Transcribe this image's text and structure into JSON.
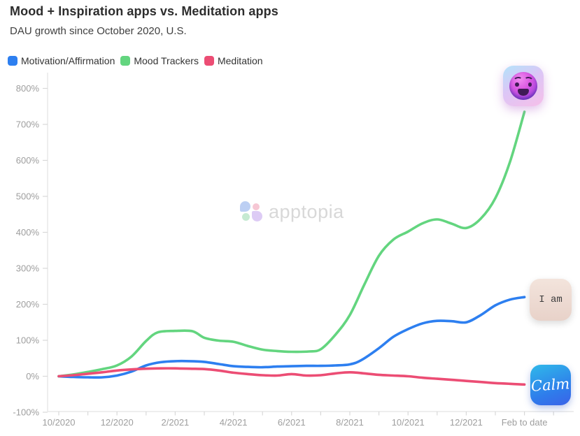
{
  "header": {
    "title": "Mood + Inspiration apps vs. Meditation apps",
    "subtitle": "DAU growth since October 2020, U.S."
  },
  "legend": [
    {
      "label": "Motivation/Affirmation",
      "color": "#2D7FF0"
    },
    {
      "label": "Mood Trackers",
      "color": "#63D57F"
    },
    {
      "label": "Meditation",
      "color": "#EC4D74"
    }
  ],
  "watermark": {
    "text": "apptopia",
    "petal_colors": [
      "#b9cdf3",
      "#f6c5d2",
      "#c3e9d0",
      "#dcc9f5"
    ]
  },
  "icons": {
    "mood_tracker": {
      "description": "smiley-face gradient app icon"
    },
    "i_am": {
      "text": "I am"
    },
    "calm": {
      "text": "Calm"
    }
  },
  "chart_data": {
    "type": "line",
    "title": "Mood + Inspiration apps vs. Meditation apps",
    "subtitle": "DAU growth since October 2020, U.S.",
    "x_unit": "months since 10/2020",
    "x_tick_labels": [
      "10/2020",
      "12/2020",
      "2/2021",
      "4/2021",
      "6/2021",
      "8/2021",
      "10/2021",
      "12/2021",
      "Feb to date"
    ],
    "y_ticks": [
      800,
      700,
      600,
      500,
      400,
      300,
      200,
      100,
      0,
      -100
    ],
    "ylim": [
      -100,
      800
    ],
    "y_suffix": "%",
    "grid": false,
    "legend_position": "top-left",
    "series": [
      {
        "name": "Motivation/Affirmation",
        "slug": "motivation-affirmation",
        "color": "#2D7FF0",
        "points": [
          [
            0,
            0
          ],
          [
            0.5,
            -2
          ],
          [
            1,
            -3
          ],
          [
            1.5,
            -3
          ],
          [
            2,
            2
          ],
          [
            2.5,
            13
          ],
          [
            3,
            30
          ],
          [
            3.5,
            39
          ],
          [
            4,
            42
          ],
          [
            4.5,
            42
          ],
          [
            5,
            40
          ],
          [
            5.5,
            34
          ],
          [
            6,
            28
          ],
          [
            6.5,
            26
          ],
          [
            7,
            25
          ],
          [
            7.5,
            27
          ],
          [
            8,
            28
          ],
          [
            8.5,
            29
          ],
          [
            9,
            29
          ],
          [
            9.5,
            30
          ],
          [
            10,
            33
          ],
          [
            10.4,
            45
          ],
          [
            11,
            78
          ],
          [
            11.5,
            110
          ],
          [
            12,
            131
          ],
          [
            12.5,
            147
          ],
          [
            13,
            154
          ],
          [
            13.5,
            153
          ],
          [
            14,
            150
          ],
          [
            14.5,
            170
          ],
          [
            15,
            197
          ],
          [
            15.5,
            213
          ],
          [
            16,
            220
          ]
        ]
      },
      {
        "name": "Mood Trackers",
        "slug": "mood-trackers",
        "color": "#63D57F",
        "points": [
          [
            0,
            0
          ],
          [
            0.5,
            5
          ],
          [
            1,
            12
          ],
          [
            1.5,
            20
          ],
          [
            2,
            30
          ],
          [
            2.5,
            55
          ],
          [
            3,
            98
          ],
          [
            3.4,
            122
          ],
          [
            4,
            126
          ],
          [
            4.6,
            125
          ],
          [
            5,
            107
          ],
          [
            5.5,
            99
          ],
          [
            6,
            96
          ],
          [
            6.5,
            84
          ],
          [
            7,
            74
          ],
          [
            7.5,
            70
          ],
          [
            8,
            68
          ],
          [
            8.6,
            69
          ],
          [
            9,
            75
          ],
          [
            9.5,
            115
          ],
          [
            10,
            170
          ],
          [
            10.5,
            255
          ],
          [
            11,
            335
          ],
          [
            11.5,
            380
          ],
          [
            12,
            402
          ],
          [
            12.5,
            425
          ],
          [
            13,
            436
          ],
          [
            13.5,
            424
          ],
          [
            14,
            412
          ],
          [
            14.5,
            438
          ],
          [
            15,
            495
          ],
          [
            15.5,
            595
          ],
          [
            16,
            735
          ]
        ]
      },
      {
        "name": "Meditation",
        "slug": "meditation",
        "color": "#EC4D74",
        "points": [
          [
            0,
            0
          ],
          [
            0.5,
            3
          ],
          [
            1,
            7
          ],
          [
            1.5,
            11
          ],
          [
            2,
            16
          ],
          [
            2.5,
            19
          ],
          [
            3,
            21
          ],
          [
            3.5,
            22
          ],
          [
            4,
            22
          ],
          [
            4.5,
            21
          ],
          [
            5,
            20
          ],
          [
            5.5,
            16
          ],
          [
            6,
            10
          ],
          [
            6.5,
            6
          ],
          [
            7,
            3
          ],
          [
            7.5,
            2
          ],
          [
            8,
            6
          ],
          [
            8.5,
            2
          ],
          [
            9,
            3
          ],
          [
            9.5,
            8
          ],
          [
            10,
            11
          ],
          [
            10.5,
            8
          ],
          [
            11,
            4
          ],
          [
            11.5,
            2
          ],
          [
            12,
            0
          ],
          [
            12.5,
            -4
          ],
          [
            13,
            -7
          ],
          [
            13.5,
            -10
          ],
          [
            14,
            -13
          ],
          [
            14.5,
            -16
          ],
          [
            15,
            -19
          ],
          [
            15.5,
            -21
          ],
          [
            16,
            -23
          ]
        ]
      }
    ]
  }
}
